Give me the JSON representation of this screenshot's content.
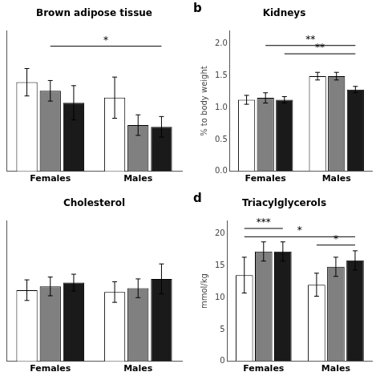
{
  "chart_data": [
    {
      "type": "bar",
      "title": "Brown adipose tissue",
      "categories": [
        "Females",
        "Males"
      ],
      "series": [
        {
          "color": "white",
          "values": [
            0.52,
            0.43
          ],
          "errors": [
            0.08,
            0.12
          ]
        },
        {
          "color": "#808080",
          "values": [
            0.47,
            0.27
          ],
          "errors": [
            0.06,
            0.06
          ]
        },
        {
          "color": "#1a1a1a",
          "values": [
            0.4,
            0.26
          ],
          "errors": [
            0.1,
            0.06
          ]
        }
      ],
      "ylim": [
        0,
        0.82
      ],
      "grid": false,
      "tick_labels": "x",
      "annotations": [
        {
          "text": "*",
          "y": 0.73,
          "from": {
            "category": "Females",
            "series": 1
          },
          "to": {
            "category": "Males",
            "series": 2
          }
        }
      ]
    },
    {
      "type": "bar",
      "title": "Kidneys",
      "ylabel": "% to body weight",
      "categories": [
        "Females",
        "Males"
      ],
      "series": [
        {
          "color": "white",
          "values": [
            1.12,
            1.49
          ],
          "errors": [
            0.07,
            0.06
          ]
        },
        {
          "color": "#808080",
          "values": [
            1.15,
            1.49
          ],
          "errors": [
            0.08,
            0.06
          ]
        },
        {
          "color": "#1a1a1a",
          "values": [
            1.12,
            1.28
          ],
          "errors": [
            0.05,
            0.05
          ]
        }
      ],
      "ylim": [
        0.0,
        2.2
      ],
      "yticks": [
        {
          "value": 0,
          "label": "0.0"
        },
        0.5,
        {
          "value": 1,
          "label": "1.0"
        },
        1.5,
        {
          "value": 2,
          "label": "2.0"
        }
      ],
      "grid": false,
      "annotations": [
        {
          "text": "b"
        },
        {
          "text": "**",
          "y": 1.97,
          "from": {
            "category": "Females",
            "series": 1
          },
          "to": {
            "category": "Males",
            "series": 2
          }
        },
        {
          "text": "**",
          "y": 1.84,
          "from": {
            "category": "Females",
            "series": 2
          },
          "to": {
            "category": "Males",
            "series": 2
          }
        }
      ]
    },
    {
      "type": "bar",
      "title": "Cholesterol",
      "categories": [
        "Females",
        "Males"
      ],
      "series": [
        {
          "color": "white",
          "values": [
            3.8,
            3.7
          ],
          "errors": [
            0.55,
            0.55
          ]
        },
        {
          "color": "#808080",
          "values": [
            4.0,
            3.9
          ],
          "errors": [
            0.5,
            0.5
          ]
        },
        {
          "color": "#1a1a1a",
          "values": [
            4.2,
            4.4
          ],
          "errors": [
            0.45,
            0.8
          ]
        }
      ],
      "ylim": [
        0,
        7.5
      ],
      "grid": false,
      "tick_labels": "x"
    },
    {
      "type": "bar",
      "title": "Triacylglycerols",
      "ylabel": "mmol/kg",
      "categories": [
        "Females",
        "Males"
      ],
      "series": [
        {
          "color": "white",
          "values": [
            13.5,
            12.0
          ],
          "errors": [
            2.8,
            1.8
          ]
        },
        {
          "color": "#808080",
          "values": [
            17.2,
            14.8
          ],
          "errors": [
            1.5,
            1.5
          ]
        },
        {
          "color": "#1a1a1a",
          "values": [
            17.2,
            15.8
          ],
          "errors": [
            1.5,
            1.5
          ]
        }
      ],
      "ylim": [
        0,
        22
      ],
      "yticks": [
        0,
        5,
        10,
        15,
        20
      ],
      "grid": false,
      "annotations": [
        {
          "text": "d"
        },
        {
          "text": "***",
          "y": 20.8,
          "from": {
            "category": "Females",
            "series": 0
          },
          "to": {
            "category": "Females",
            "series": 2
          }
        },
        {
          "text": "*",
          "y": 19.5,
          "from": {
            "category": "Females",
            "series": 0
          },
          "to": {
            "category": "Males",
            "series": 2
          }
        },
        {
          "text": "*",
          "y": 18.2,
          "from": {
            "category": "Males",
            "series": 0
          },
          "to": {
            "category": "Males",
            "series": 2
          }
        }
      ]
    }
  ]
}
